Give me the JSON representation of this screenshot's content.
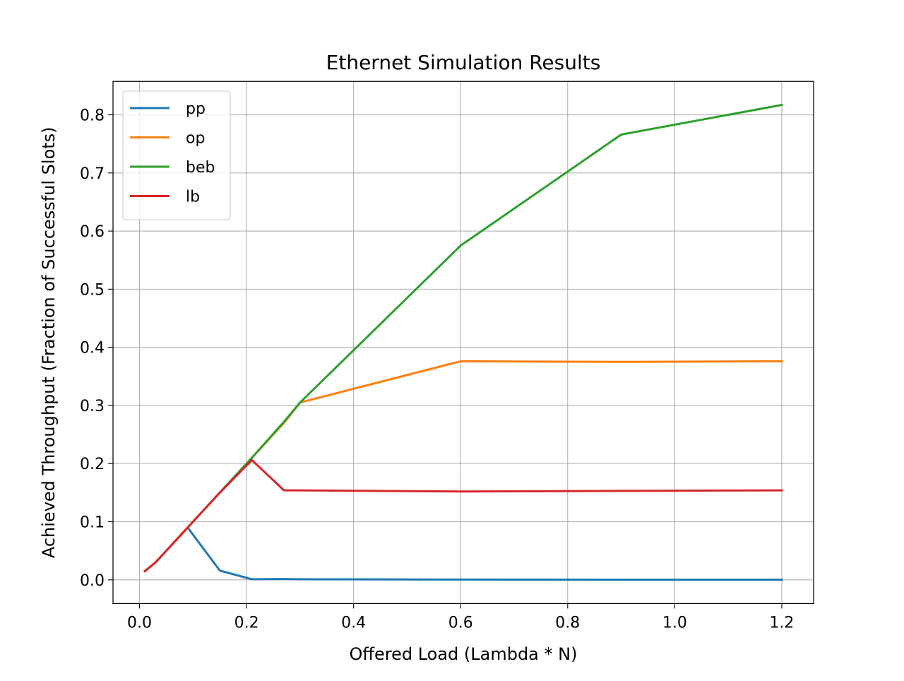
{
  "chart_data": {
    "type": "line",
    "title": "Ethernet Simulation Results",
    "xlabel": "Offered Load (Lambda * N)",
    "ylabel": "Achieved Throughput (Fraction of Successful Slots)",
    "xlim": [
      -0.0495,
      1.2595
    ],
    "ylim": [
      -0.0408,
      0.8575
    ],
    "xticks": [
      0.0,
      0.2,
      0.4,
      0.6,
      0.8,
      1.0,
      1.2
    ],
    "xtick_labels": [
      "0.0",
      "0.2",
      "0.4",
      "0.6",
      "0.8",
      "1.0",
      "1.2"
    ],
    "yticks": [
      0.0,
      0.1,
      0.2,
      0.3,
      0.4,
      0.5,
      0.6,
      0.7,
      0.8
    ],
    "ytick_labels": [
      "0.0",
      "0.1",
      "0.2",
      "0.3",
      "0.4",
      "0.5",
      "0.6",
      "0.7",
      "0.8"
    ],
    "grid": true,
    "legend_position": "top-left",
    "series": [
      {
        "name": "pp",
        "color": "#1f77b4",
        "x": [
          0.01,
          0.03,
          0.09,
          0.15,
          0.21,
          0.27,
          0.3,
          0.6,
          0.9,
          1.2
        ],
        "y": [
          0.015,
          0.03,
          0.09,
          0.016,
          0.001,
          0.0015,
          0.001,
          0.0005,
          0.0003,
          0.0002
        ]
      },
      {
        "name": "op",
        "color": "#ff7f0e",
        "x": [
          0.01,
          0.03,
          0.09,
          0.15,
          0.21,
          0.27,
          0.3,
          0.6,
          0.9,
          1.2
        ],
        "y": [
          0.015,
          0.03,
          0.09,
          0.15,
          0.21,
          0.27,
          0.305,
          0.376,
          0.375,
          0.376
        ]
      },
      {
        "name": "beb",
        "color": "#2ca02c",
        "x": [
          0.01,
          0.03,
          0.09,
          0.15,
          0.21,
          0.27,
          0.3,
          0.6,
          0.9,
          1.2
        ],
        "y": [
          0.015,
          0.03,
          0.09,
          0.15,
          0.21,
          0.272,
          0.305,
          0.575,
          0.766,
          0.817
        ]
      },
      {
        "name": "lb",
        "color": "#d62728",
        "x": [
          0.01,
          0.03,
          0.09,
          0.15,
          0.21,
          0.27,
          0.3,
          0.6,
          0.9,
          1.2
        ],
        "y": [
          0.015,
          0.03,
          0.09,
          0.15,
          0.206,
          0.154,
          0.154,
          0.152,
          0.153,
          0.154
        ]
      }
    ]
  }
}
